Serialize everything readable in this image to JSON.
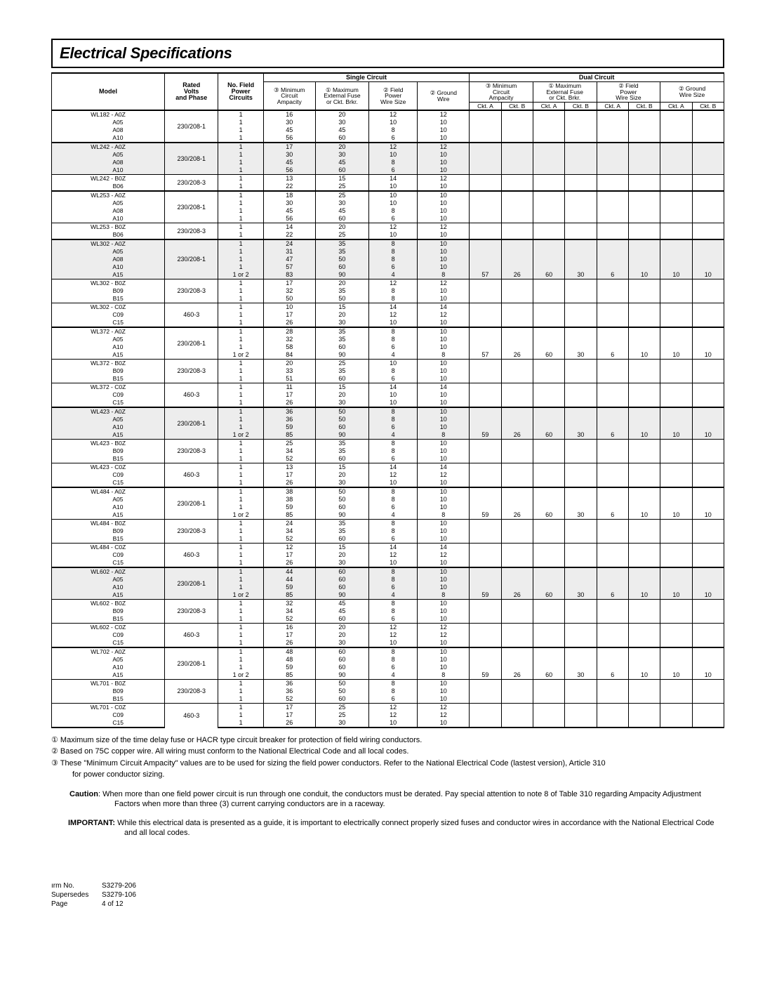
{
  "title": "Electrical Specifications",
  "headers": {
    "single_circuit": "Single Circuit",
    "dual_circuit": "Dual Circuit",
    "model": "Model",
    "rated": "Rated\nVolts\nand Phase",
    "npower": "No. Field\nPower\nCircuits",
    "min_amp": "③ Minimum\nCircuit\nAmpacity",
    "max_fuse": "① Maximum\nExternal Fuse\nor Ckt. Brkr.",
    "field_wire": "② Field\nPower\nWire Size",
    "ground_wire": "② Ground\nWire",
    "ground_wire_dc": "② Ground\nWire Size",
    "ckt_a": "Ckt. A",
    "ckt_b": "Ckt. B"
  },
  "groups": [
    {
      "model": "WL182",
      "sub": [
        "A0Z",
        "A05",
        "A08",
        "A10"
      ],
      "volt": "230/208-1",
      "np": [
        "1",
        "1",
        "1",
        "1"
      ],
      "min": [
        "16",
        "30",
        "45",
        "56"
      ],
      "max": [
        "20",
        "30",
        "45",
        "60"
      ],
      "fw": [
        "12",
        "10",
        "8",
        "6"
      ],
      "gw": [
        "12",
        "10",
        "10",
        "10"
      ],
      "sep": "heavy",
      "shade": false
    },
    {
      "model": "WL242",
      "sub": [
        "A0Z",
        "A05",
        "A08",
        "A10"
      ],
      "volt": "230/208-1",
      "np": [
        "1",
        "1",
        "1",
        "1"
      ],
      "min": [
        "17",
        "30",
        "45",
        "56"
      ],
      "max": [
        "20",
        "30",
        "45",
        "60"
      ],
      "fw": [
        "12",
        "10",
        "8",
        "6"
      ],
      "gw": [
        "12",
        "10",
        "10",
        "10"
      ],
      "sep": "heavy",
      "shade": true
    },
    {
      "model": "WL242",
      "sub": [
        "B0Z",
        "B06"
      ],
      "volt": "230/208-3",
      "np": [
        "1",
        "1"
      ],
      "min": [
        "13",
        "22"
      ],
      "max": [
        "15",
        "25"
      ],
      "fw": [
        "14",
        "10"
      ],
      "gw": [
        "12",
        "10"
      ],
      "sep": "thin",
      "shade": false
    },
    {
      "model": "WL253",
      "sub": [
        "A0Z",
        "A05",
        "A08",
        "A10"
      ],
      "volt": "230/208-1",
      "np": [
        "1",
        "1",
        "1",
        "1"
      ],
      "min": [
        "18",
        "30",
        "45",
        "56"
      ],
      "max": [
        "25",
        "30",
        "45",
        "60"
      ],
      "fw": [
        "10",
        "10",
        "8",
        "6"
      ],
      "gw": [
        "10",
        "10",
        "10",
        "10"
      ],
      "sep": "heavy",
      "shade": false
    },
    {
      "model": "WL253",
      "sub": [
        "B0Z",
        "B06"
      ],
      "volt": "230/208-3",
      "np": [
        "1",
        "1"
      ],
      "min": [
        "14",
        "22"
      ],
      "max": [
        "20",
        "25"
      ],
      "fw": [
        "12",
        "10"
      ],
      "gw": [
        "12",
        "10"
      ],
      "sep": "thin",
      "shade": false
    },
    {
      "model": "WL302",
      "sub": [
        "A0Z",
        "A05",
        "A08",
        "A10",
        "A15"
      ],
      "volt": "230/208-1",
      "np": [
        "1",
        "1",
        "1",
        "1",
        "1  or 2"
      ],
      "min": [
        "24",
        "31",
        "47",
        "57",
        "83"
      ],
      "max": [
        "35",
        "35",
        "50",
        "60",
        "90"
      ],
      "fw": [
        "8",
        "8",
        "8",
        "6",
        "4"
      ],
      "gw": [
        "10",
        "10",
        "10",
        "10",
        "8"
      ],
      "dc": [
        "57",
        "26",
        "60",
        "30",
        "6",
        "10",
        "10",
        "10"
      ],
      "sep": "heavy",
      "shade": true
    },
    {
      "model": "WL302",
      "sub": [
        "B0Z",
        "B09",
        "B15"
      ],
      "volt": "230/208-3",
      "np": [
        "1",
        "1",
        "1"
      ],
      "min": [
        "17",
        "32",
        "50"
      ],
      "max": [
        "20",
        "35",
        "50"
      ],
      "fw": [
        "12",
        "8",
        "8"
      ],
      "gw": [
        "12",
        "10",
        "10"
      ],
      "sep": "thin",
      "shade": false
    },
    {
      "model": "WL302",
      "sub": [
        "C0Z",
        "C09",
        "C15"
      ],
      "volt": "460-3",
      "np": [
        "1",
        "1",
        "1"
      ],
      "min": [
        "10",
        "17",
        "26"
      ],
      "max": [
        "15",
        "20",
        "30"
      ],
      "fw": [
        "14",
        "12",
        "10"
      ],
      "gw": [
        "14",
        "12",
        "10"
      ],
      "sep": "thin",
      "shade": false
    },
    {
      "model": "WL372",
      "sub": [
        "A0Z",
        "A05",
        "A10",
        "A15"
      ],
      "volt": "230/208-1",
      "np": [
        "1",
        "1",
        "1",
        "1   or 2"
      ],
      "min": [
        "28",
        "32",
        "58",
        "84"
      ],
      "max": [
        "35",
        "35",
        "60",
        "90"
      ],
      "fw": [
        "8",
        "8",
        "6",
        "4"
      ],
      "gw": [
        "10",
        "10",
        "10",
        "8"
      ],
      "dc": [
        "57",
        "26",
        "60",
        "30",
        "6",
        "10",
        "10",
        "10"
      ],
      "sep": "heavy",
      "shade": false
    },
    {
      "model": "WL372",
      "sub": [
        "B0Z",
        "B09",
        "B15"
      ],
      "volt": "230/208-3",
      "np": [
        "1",
        "1",
        "1"
      ],
      "min": [
        "20",
        "33",
        "51"
      ],
      "max": [
        "25",
        "35",
        "60"
      ],
      "fw": [
        "10",
        "8",
        "6"
      ],
      "gw": [
        "10",
        "10",
        "10"
      ],
      "sep": "thin",
      "shade": false
    },
    {
      "model": "WL372",
      "sub": [
        "C0Z",
        "C09",
        "C15"
      ],
      "volt": "460-3",
      "np": [
        "1",
        "1",
        "1"
      ],
      "min": [
        "11",
        "17",
        "26"
      ],
      "max": [
        "15",
        "20",
        "30"
      ],
      "fw": [
        "14",
        "10",
        "10"
      ],
      "gw": [
        "14",
        "10",
        "10"
      ],
      "sep": "thin",
      "shade": false
    },
    {
      "model": "WL423",
      "sub": [
        "A0Z",
        "A05",
        "A10",
        "A15"
      ],
      "volt": "230/208-1",
      "np": [
        "1",
        "1",
        "1",
        "1 or 2"
      ],
      "min": [
        "36",
        "36",
        "59",
        "85"
      ],
      "max": [
        "50",
        "50",
        "60",
        "90"
      ],
      "fw": [
        "8",
        "8",
        "6",
        "4"
      ],
      "gw": [
        "10",
        "10",
        "10",
        "8"
      ],
      "dc": [
        "59",
        "26",
        "60",
        "30",
        "6",
        "10",
        "10",
        "10"
      ],
      "sep": "heavy",
      "shade": true
    },
    {
      "model": "WL423",
      "sub": [
        "B0Z",
        "B09",
        "B15"
      ],
      "volt": "230/208-3",
      "np": [
        "1",
        "1",
        "1"
      ],
      "min": [
        "25",
        "34",
        "52"
      ],
      "max": [
        "35",
        "35",
        "60"
      ],
      "fw": [
        "8",
        "8",
        "6"
      ],
      "gw": [
        "10",
        "10",
        "10"
      ],
      "sep": "thin",
      "shade": false
    },
    {
      "model": "WL423",
      "sub": [
        "C0Z",
        "C09",
        "C15"
      ],
      "volt": "460-3",
      "np": [
        "1",
        "1",
        "1"
      ],
      "min": [
        "13",
        "17",
        "26"
      ],
      "max": [
        "15",
        "20",
        "30"
      ],
      "fw": [
        "14",
        "12",
        "10"
      ],
      "gw": [
        "14",
        "12",
        "10"
      ],
      "sep": "thin",
      "shade": false
    },
    {
      "model": "WL484",
      "sub": [
        "A0Z",
        "A05",
        "A10",
        "A15"
      ],
      "volt": "230/208-1",
      "np": [
        "1",
        "1",
        "1",
        "1 or 2"
      ],
      "min": [
        "38",
        "38",
        "59",
        "85"
      ],
      "max": [
        "50",
        "50",
        "60",
        "90"
      ],
      "fw": [
        "8",
        "8",
        "6",
        "4"
      ],
      "gw": [
        "10",
        "10",
        "10",
        "8"
      ],
      "dc": [
        "59",
        "26",
        "60",
        "30",
        "6",
        "10",
        "10",
        "10"
      ],
      "sep": "heavy",
      "shade": false
    },
    {
      "model": "WL484",
      "sub": [
        "B0Z",
        "B09",
        "B15"
      ],
      "volt": "230/208-3",
      "np": [
        "1",
        "1",
        "1"
      ],
      "min": [
        "24",
        "34",
        "52"
      ],
      "max": [
        "35",
        "35",
        "60"
      ],
      "fw": [
        "8",
        "8",
        "6"
      ],
      "gw": [
        "10",
        "10",
        "10"
      ],
      "sep": "thin",
      "shade": false
    },
    {
      "model": "WL484",
      "sub": [
        "C0Z",
        "C09",
        "C15"
      ],
      "volt": "460-3",
      "np": [
        "1",
        "1",
        "1"
      ],
      "min": [
        "12",
        "17",
        "26"
      ],
      "max": [
        "15",
        "20",
        "30"
      ],
      "fw": [
        "14",
        "12",
        "10"
      ],
      "gw": [
        "14",
        "12",
        "10"
      ],
      "sep": "thin",
      "shade": false
    },
    {
      "model": "WL602",
      "sub": [
        "A0Z",
        "A05",
        "A10",
        "A15"
      ],
      "volt": "230/208-1",
      "np": [
        "1",
        "1",
        "1",
        "1 or 2"
      ],
      "min": [
        "44",
        "44",
        "59",
        "85"
      ],
      "max": [
        "60",
        "60",
        "60",
        "90"
      ],
      "fw": [
        "8",
        "8",
        "6",
        "4"
      ],
      "gw": [
        "10",
        "10",
        "10",
        "8"
      ],
      "dc": [
        "59",
        "26",
        "60",
        "30",
        "6",
        "10",
        "10",
        "10"
      ],
      "sep": "heavy",
      "shade": true
    },
    {
      "model": "WL602",
      "sub": [
        "B0Z",
        "B09",
        "B15"
      ],
      "volt": "230/208-3",
      "np": [
        "1",
        "1",
        "1"
      ],
      "min": [
        "32",
        "34",
        "52"
      ],
      "max": [
        "45",
        "45",
        "60"
      ],
      "fw": [
        "8",
        "8",
        "6"
      ],
      "gw": [
        "10",
        "10",
        "10"
      ],
      "sep": "thin",
      "shade": false
    },
    {
      "model": "WL602",
      "sub": [
        "C0Z",
        "C09",
        "C15"
      ],
      "volt": "460-3",
      "np": [
        "1",
        "1",
        "1"
      ],
      "min": [
        "16",
        "17",
        "26"
      ],
      "max": [
        "20",
        "20",
        "30"
      ],
      "fw": [
        "12",
        "12",
        "10"
      ],
      "gw": [
        "12",
        "12",
        "10"
      ],
      "sep": "thin",
      "shade": false
    },
    {
      "model": "WL702",
      "sub": [
        "A0Z",
        "A05",
        "A10",
        "A15"
      ],
      "volt": "230/208-1",
      "np": [
        "1",
        "1",
        "1",
        "1 or 2"
      ],
      "min": [
        "48",
        "48",
        "59",
        "85"
      ],
      "max": [
        "60",
        "60",
        "60",
        "90"
      ],
      "fw": [
        "8",
        "8",
        "6",
        "4"
      ],
      "gw": [
        "10",
        "10",
        "10",
        "8"
      ],
      "dc": [
        "59",
        "26",
        "60",
        "30",
        "6",
        "10",
        "10",
        "10"
      ],
      "sep": "heavy",
      "shade": false
    },
    {
      "model": "WL701",
      "sub": [
        "B0Z",
        "B09",
        "B15"
      ],
      "volt": "230/208-3",
      "np": [
        "1",
        "1",
        "1"
      ],
      "min": [
        "36",
        "36",
        "52"
      ],
      "max": [
        "50",
        "50",
        "60"
      ],
      "fw": [
        "8",
        "8",
        "6"
      ],
      "gw": [
        "10",
        "10",
        "10"
      ],
      "sep": "thin",
      "shade": false
    },
    {
      "model": "WL701",
      "sub": [
        "C0Z",
        "C09",
        "C15"
      ],
      "volt": "460-3",
      "np": [
        "1",
        "1",
        "1"
      ],
      "min": [
        "17",
        "17",
        "26"
      ],
      "max": [
        "25",
        "25",
        "30"
      ],
      "fw": [
        "12",
        "12",
        "10"
      ],
      "gw": [
        "12",
        "12",
        "10"
      ],
      "sep": "thin",
      "shade": false
    }
  ],
  "notes": [
    "① Maximum size of the time delay fuse or HACR type circuit breaker for protection of field wiring conductors.",
    "② Based on 75C copper wire.  All wiring must conform to the National Electrical Code and all local codes.",
    "③ These \"Minimum Circuit Ampacity\" values are to be used for sizing the field power conductors.  Refer to the National Electrical Code (lastest version), Article 310",
    "for power conductor sizing."
  ],
  "caution_lbl": "Caution",
  "caution": ":   When more than one field power circuit is run through one conduit, the conductors must be derated.  Pay special attention to note 8 of Table 310 regarding Ampacity Adjustment Factors when more than three (3) current carrying conductors are in a raceway.",
  "important_lbl": "IMPORTANT:",
  "important": "  While this electrical data is presented as a guide, it is important to electrically connect properly sized fuses and conductor wires in accordance with the National Electrical Code and all local codes.",
  "footer": {
    "form_lbl": "ırm No.",
    "form": "S3279-206",
    "sup_lbl": "Supersedes",
    "sup": "S3279-106",
    "page_lbl": "Page",
    "page": "4 of 12"
  }
}
